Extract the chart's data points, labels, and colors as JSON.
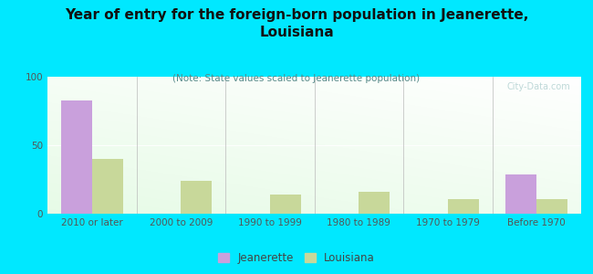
{
  "title": "Year of entry for the foreign-born population in Jeanerette,\nLouisiana",
  "subtitle": "(Note: State values scaled to Jeanerette population)",
  "categories": [
    "2010 or later",
    "2000 to 2009",
    "1990 to 1999",
    "1980 to 1989",
    "1970 to 1979",
    "Before 1970"
  ],
  "jeanerette_values": [
    83,
    0,
    0,
    0,
    0,
    29
  ],
  "louisiana_values": [
    40,
    24,
    14,
    16,
    11,
    11
  ],
  "jeanerette_color": "#c9a0dc",
  "louisiana_color": "#c8d89a",
  "background_color": "#00e8ff",
  "ylim": [
    0,
    100
  ],
  "yticks": [
    0,
    50,
    100
  ],
  "bar_width": 0.35,
  "title_fontsize": 11,
  "subtitle_fontsize": 7.5,
  "tick_fontsize": 7.5,
  "legend_fontsize": 8.5,
  "watermark": "City-Data.com"
}
